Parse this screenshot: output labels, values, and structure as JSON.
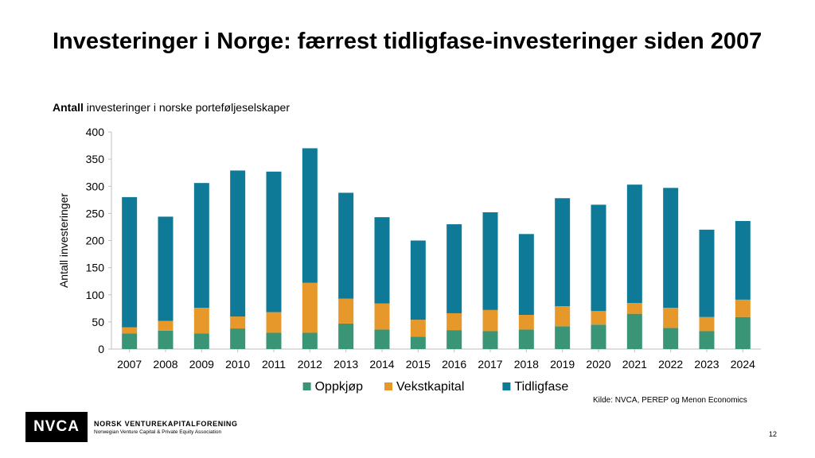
{
  "slide": {
    "title": "Investeringer i Norge: færrest tidligfase-investeringer siden 2007",
    "subtitle_bold": "Antall",
    "subtitle_rest": " investeringer i norske porteføljeselskaper",
    "source": "Kilde: NVCA, PEREP og Menon Economics",
    "page_number": "12"
  },
  "logo": {
    "mark": "NVCA",
    "name": "NORSK VENTUREKAPITALFORENING",
    "tagline": "Norwegian Venture Capital & Private Equity Association"
  },
  "chart_data": {
    "type": "bar",
    "stacked": true,
    "ylabel": "Antall investeringer",
    "xlabel": "",
    "ylim": [
      0,
      400
    ],
    "yticks": [
      0,
      50,
      100,
      150,
      200,
      250,
      300,
      350,
      400
    ],
    "grid": false,
    "legend_position": "bottom",
    "categories": [
      "2007",
      "2008",
      "2009",
      "2010",
      "2011",
      "2012",
      "2013",
      "2014",
      "2015",
      "2016",
      "2017",
      "2018",
      "2019",
      "2020",
      "2021",
      "2022",
      "2023",
      "2024"
    ],
    "series": [
      {
        "name": "Oppkjøp",
        "color": "#3a9577",
        "values": [
          29,
          34,
          29,
          38,
          30,
          30,
          47,
          36,
          23,
          35,
          33,
          36,
          42,
          45,
          65,
          39,
          33,
          59
        ]
      },
      {
        "name": "Vekstkapital",
        "color": "#e6982a",
        "values": [
          11,
          18,
          47,
          22,
          38,
          92,
          46,
          48,
          31,
          31,
          39,
          27,
          37,
          25,
          20,
          37,
          26,
          32
        ]
      },
      {
        "name": "Tidligfase",
        "color": "#0f7a97",
        "values": [
          240,
          192,
          230,
          269,
          259,
          248,
          195,
          159,
          146,
          164,
          180,
          149,
          199,
          196,
          218,
          221,
          161,
          145
        ]
      }
    ]
  }
}
